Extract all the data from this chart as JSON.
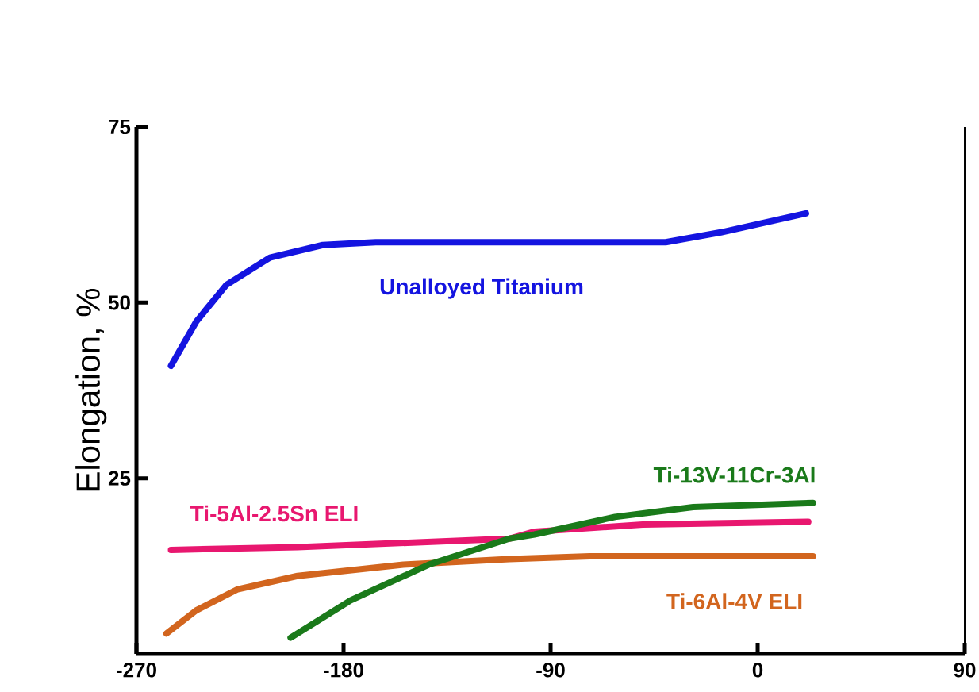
{
  "chart_data": {
    "type": "line",
    "ylabel": "Elongation, %",
    "xlim": [
      -270,
      90
    ],
    "xticks": [
      -270,
      -180,
      -90,
      0,
      90
    ],
    "ylim": [
      0,
      75
    ],
    "yticks": [
      25,
      50,
      75
    ],
    "grid": false,
    "legend": false,
    "marker": "none",
    "line_style": "solid",
    "series": [
      {
        "name": "Unalloyed Titanium",
        "color": "#1414e0",
        "x": [
          -255,
          -244,
          -231,
          -212,
          -189,
          -166,
          -100,
          -40,
          -16,
          21
        ],
        "values": [
          41,
          47.3,
          52.5,
          56.4,
          58.2,
          58.6,
          58.6,
          58.6,
          60,
          62.7
        ]
      },
      {
        "name": "Ti-5Al-2.5Sn ELI",
        "color": "#e8176f",
        "x": [
          -255,
          -200,
          -108,
          -97,
          -50,
          22
        ],
        "values": [
          14.8,
          15.2,
          16.4,
          17.4,
          18.4,
          18.8
        ]
      },
      {
        "name": "Ti-6Al-4V ELI",
        "color": "#d2651e",
        "x": [
          -257,
          -244,
          -226,
          -200,
          -154,
          -108,
          -73,
          24
        ],
        "values": [
          2.9,
          6.2,
          9.2,
          11.1,
          12.7,
          13.5,
          13.9,
          13.9
        ]
      },
      {
        "name": "Ti-13V-11Cr-3Al",
        "color": "#1a7a1a",
        "x": [
          -203,
          -177,
          -143,
          -108,
          -97,
          -62,
          -28,
          24
        ],
        "values": [
          2.3,
          7.6,
          12.7,
          16.4,
          17,
          19.5,
          20.9,
          21.5
        ]
      }
    ]
  }
}
